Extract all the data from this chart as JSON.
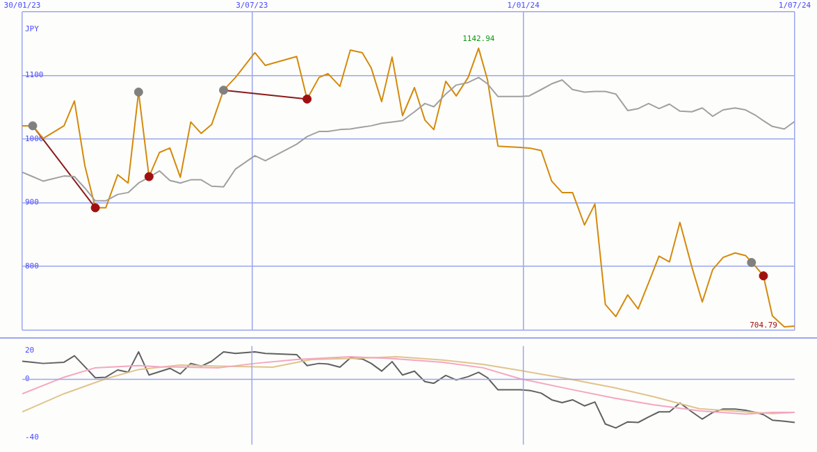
{
  "chart_data": [
    {
      "type": "line",
      "ylabel": "JPY",
      "xlim": [
        "2023-01-30",
        "2024-07-01"
      ],
      "xticks": [
        {
          "value": "2023-01-30",
          "label": "30/01/23"
        },
        {
          "value": "2023-07-03",
          "label": "3/07/23"
        },
        {
          "value": "2024-01-01",
          "label": "1/01/24"
        },
        {
          "value": "2024-07-01",
          "label": "1/07/24"
        }
      ],
      "ylim": [
        700,
        1200
      ],
      "yticks": [
        {
          "value": 700,
          "label": null
        },
        800,
        900,
        1000,
        1100,
        {
          "value": 1200,
          "label": null
        }
      ],
      "grid": true,
      "legend": false,
      "marker": "none",
      "line_style": "solid",
      "x": [
        "2023-01-30",
        "2023-02-06",
        "2023-02-13",
        "2023-02-27",
        "2023-03-06",
        "2023-03-13",
        "2023-03-20",
        "2023-03-27",
        "2023-04-04",
        "2023-04-11",
        "2023-04-18",
        "2023-04-25",
        "2023-05-02",
        "2023-05-09",
        "2023-05-16",
        "2023-05-23",
        "2023-05-30",
        "2023-06-06",
        "2023-06-14",
        "2023-06-22",
        "2023-07-05",
        "2023-07-12",
        "2023-08-02",
        "2023-08-09",
        "2023-08-17",
        "2023-08-23",
        "2023-08-31",
        "2023-09-07",
        "2023-09-15",
        "2023-09-21",
        "2023-09-28",
        "2023-10-05",
        "2023-10-12",
        "2023-10-20",
        "2023-10-27",
        "2023-11-02",
        "2023-11-10",
        "2023-11-17",
        "2023-11-25",
        "2023-12-02",
        "2023-12-08",
        "2023-12-15",
        "2023-12-30",
        "2024-01-05",
        "2024-01-13",
        "2024-01-20",
        "2024-01-27",
        "2024-02-03",
        "2024-02-11",
        "2024-02-18",
        "2024-02-25",
        "2024-03-03",
        "2024-03-11",
        "2024-03-18",
        "2024-03-25",
        "2024-04-01",
        "2024-04-08",
        "2024-04-15",
        "2024-04-23",
        "2024-04-30",
        "2024-05-07",
        "2024-05-14",
        "2024-05-22",
        "2024-05-29",
        "2024-06-05",
        "2024-06-10",
        "2024-06-16",
        "2024-06-24",
        "2024-07-01"
      ],
      "series": [
        {
          "type": "line",
          "color": "#a0a0a0",
          "values": [
            948,
            941,
            934,
            942,
            941,
            923,
            903,
            903,
            913,
            916,
            931,
            940,
            950,
            935,
            931,
            936,
            936,
            926,
            925,
            953,
            974,
            966,
            992,
            1004,
            1012,
            1012,
            1015,
            1016,
            1019,
            1021,
            1025,
            1027,
            1029,
            1043,
            1056,
            1051,
            1071,
            1085,
            1089,
            1097,
            1087,
            1067,
            1067,
            1068,
            1078,
            1087,
            1093,
            1078,
            1074,
            1075,
            1075,
            1071,
            1045,
            1048,
            1056,
            1048,
            1055,
            1044,
            1043,
            1049,
            1036,
            1046,
            1049,
            1046,
            1037,
            1029,
            1020,
            1016,
            1028
          ]
        },
        {
          "type": "line",
          "color": "#d4890a",
          "values": [
            1021,
            1021,
            1001,
            1021,
            1060,
            958,
            892,
            892,
            944,
            931,
            1074,
            941,
            979,
            986,
            940,
            1027,
            1009,
            1023,
            1077,
            1097,
            1136,
            1116,
            1130,
            1063,
            1097,
            1103,
            1083,
            1140,
            1136,
            1112,
            1059,
            1129,
            1037,
            1081,
            1030,
            1015,
            1091,
            1068,
            1097,
            1142.94,
            1093,
            989,
            987,
            986,
            982,
            934,
            916,
            916,
            865,
            898,
            740,
            721,
            755,
            733,
            774,
            816,
            807,
            869,
            799,
            744,
            795,
            814,
            821,
            817,
            799,
            785,
            722,
            704.79,
            706
          ]
        },
        {
          "type": "line",
          "color": "#8b1a1a",
          "x": [
            "2023-02-06",
            "2023-03-20"
          ],
          "values": [
            1021,
            892
          ]
        },
        {
          "type": "line",
          "color": "#8b1a1a",
          "x": [
            "2023-06-14",
            "2023-08-09"
          ],
          "values": [
            1077,
            1063
          ]
        },
        {
          "type": "scatter",
          "color": "#808080",
          "marker": "circle",
          "x": [
            "2023-02-06",
            "2023-04-18",
            "2023-06-14",
            "2024-06-02"
          ],
          "values": [
            1021,
            1074,
            1077,
            806
          ]
        },
        {
          "type": "scatter",
          "color": "#a01010",
          "marker": "circle",
          "x": [
            "2023-03-20",
            "2023-04-25",
            "2023-08-09",
            "2024-06-10"
          ],
          "values": [
            892,
            941,
            1063,
            785
          ]
        }
      ],
      "annotations": [
        {
          "text": "1142.94",
          "x": "2023-12-02",
          "y": 1142.94
        },
        {
          "text": "704.79",
          "x": "2024-06-24",
          "y": 704.79
        }
      ]
    },
    {
      "type": "line",
      "xlim": [
        "2023-01-30",
        "2024-07-01"
      ],
      "ylim": [
        -45,
        23
      ],
      "yticks": [
        -40,
        0,
        20
      ],
      "legend": false,
      "marker": "none",
      "tick_labels": "y",
      "ref_lines": [
        {
          "axis": "y",
          "value": 0
        },
        {
          "axis": "x",
          "value": "2023-07-03"
        },
        {
          "axis": "x",
          "value": "2024-01-01"
        }
      ],
      "series": [
        {
          "type": "line",
          "color": "#f4a6c0",
          "x": [
            "2023-01-30",
            "2023-02-27",
            "2023-03-20",
            "2023-04-18",
            "2023-05-02",
            "2023-06-11",
            "2023-07-05",
            "2023-08-02",
            "2023-09-07",
            "2023-10-04",
            "2023-11-08",
            "2023-12-05",
            "2023-12-30",
            "2024-01-31",
            "2024-03-02",
            "2024-03-28",
            "2024-04-28",
            "2024-05-29",
            "2024-06-16",
            "2024-07-01"
          ],
          "values": [
            -10,
            1.5,
            8,
            9.5,
            8.7,
            8,
            11,
            13.7,
            15.6,
            14.4,
            11.8,
            8,
            0.4,
            -6.5,
            -12.9,
            -17.5,
            -21.7,
            -24,
            -22.8,
            -22.8
          ]
        },
        {
          "type": "line",
          "color": "#e0c48c",
          "x": [
            "2023-01-30",
            "2023-02-27",
            "2023-03-27",
            "2023-04-18",
            "2023-05-16",
            "2023-06-11",
            "2023-07-17",
            "2023-08-12",
            "2023-09-07",
            "2023-10-08",
            "2023-11-08",
            "2023-12-05",
            "2023-12-30",
            "2024-01-31",
            "2024-03-02",
            "2024-03-28",
            "2024-04-28",
            "2024-05-29",
            "2024-06-16",
            "2024-07-01"
          ],
          "values": [
            -22.4,
            -9.9,
            0.4,
            6.8,
            9.9,
            9.1,
            8.4,
            13.7,
            14.4,
            15.6,
            13.3,
            10.3,
            6.1,
            0.4,
            -5.7,
            -11.8,
            -20.2,
            -22.4,
            -23.6,
            -22.8
          ]
        },
        {
          "type": "line",
          "color": "#606060",
          "x": [
            "2023-01-30",
            "2023-02-06",
            "2023-02-13",
            "2023-02-27",
            "2023-03-06",
            "2023-03-13",
            "2023-03-20",
            "2023-03-27",
            "2023-04-04",
            "2023-04-11",
            "2023-04-18",
            "2023-04-25",
            "2023-05-02",
            "2023-05-09",
            "2023-05-16",
            "2023-05-23",
            "2023-05-30",
            "2023-06-06",
            "2023-06-14",
            "2023-06-22",
            "2023-07-05",
            "2023-07-12",
            "2023-08-02",
            "2023-08-09",
            "2023-08-17",
            "2023-08-23",
            "2023-08-31",
            "2023-09-07",
            "2023-09-15",
            "2023-09-21",
            "2023-09-28",
            "2023-10-05",
            "2023-10-12",
            "2023-10-20",
            "2023-10-27",
            "2023-11-02",
            "2023-11-10",
            "2023-11-17",
            "2023-11-25",
            "2023-12-02",
            "2023-12-08",
            "2023-12-15",
            "2023-12-30",
            "2024-01-05",
            "2024-01-13",
            "2024-01-20",
            "2024-01-27",
            "2024-02-03",
            "2024-02-11",
            "2024-02-18",
            "2024-02-25",
            "2024-03-03",
            "2024-03-11",
            "2024-03-18",
            "2024-03-25",
            "2024-04-01",
            "2024-04-08",
            "2024-04-15",
            "2024-04-23",
            "2024-04-30",
            "2024-05-07",
            "2024-05-14",
            "2024-05-22",
            "2024-05-29",
            "2024-06-05",
            "2024-06-10",
            "2024-06-16",
            "2024-06-24",
            "2024-07-01"
          ],
          "values": [
            12.5,
            11.8,
            11,
            11.8,
            16.3,
            8.7,
            1.1,
            1.5,
            6.5,
            4.9,
            19,
            3,
            5.3,
            7.6,
            3.8,
            11,
            9.1,
            12.5,
            19,
            17.9,
            19,
            17.9,
            17.1,
            9.5,
            11,
            10.6,
            8.4,
            14.8,
            14.1,
            11,
            5.7,
            12.2,
            3,
            5.7,
            -1.5,
            -2.7,
            2.7,
            -0.4,
            1.9,
            4.9,
            1.1,
            -7.2,
            -7.2,
            -7.6,
            -9.5,
            -14.1,
            -16,
            -14.1,
            -18.3,
            -15.6,
            -30.8,
            -33.5,
            -29.3,
            -29.7,
            -25.9,
            -22.4,
            -22.4,
            -16.3,
            -22.4,
            -27.4,
            -22.8,
            -20.5,
            -20.5,
            -21.3,
            -22.8,
            -24.3,
            -28.1,
            -28.9,
            -29.7
          ]
        }
      ]
    }
  ]
}
